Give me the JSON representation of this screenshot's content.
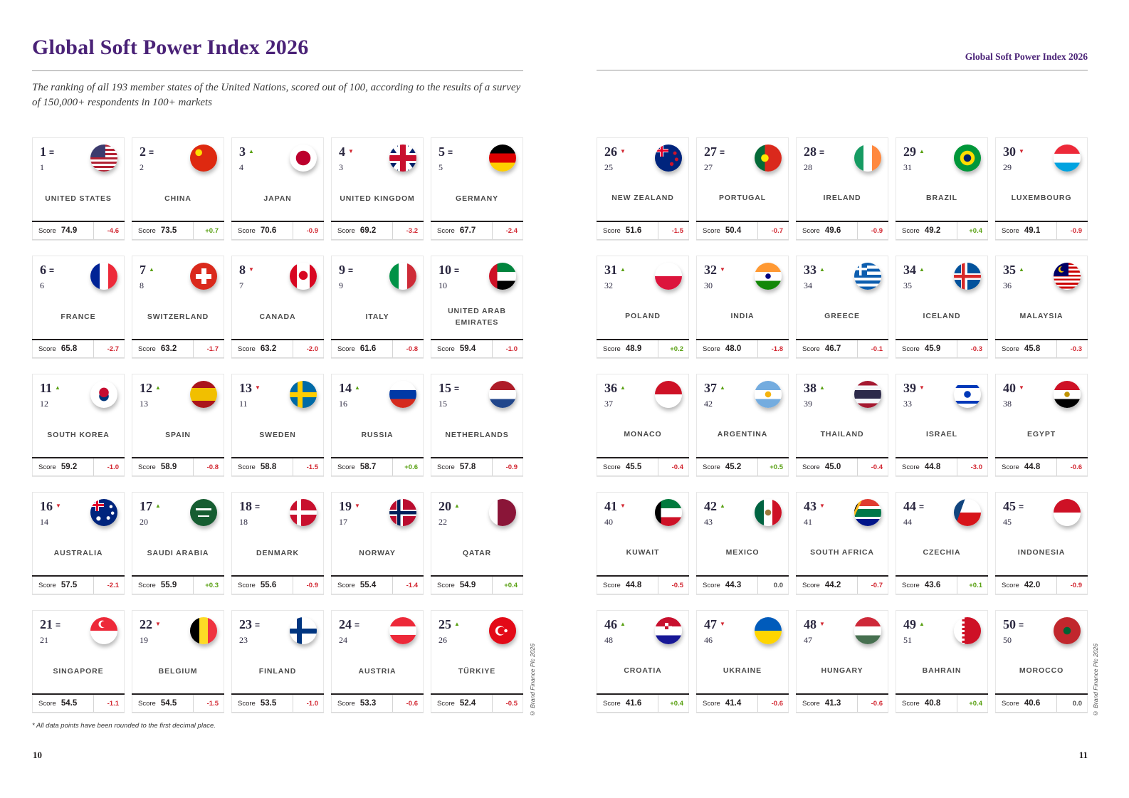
{
  "header": {
    "title": "Global Soft Power Index 2026",
    "running_header": "Global Soft Power Index 2026",
    "subtitle": "The ranking of all 193 member states of the United Nations, scored out of 100, according to the results of a survey of 150,000+ respondents in 100+ markets"
  },
  "score_label": "Score",
  "footnote": "* All data points have been rounded to the first decimal place.",
  "copyright": "© Brand Finance Plc 2026",
  "pages": {
    "left_number": "10",
    "right_number": "11"
  },
  "colors": {
    "accent_purple": "#4a2277",
    "positive_green": "#5aa114",
    "negative_red": "#d22630",
    "rank_ink": "#2b2840"
  },
  "movement_glyphs": {
    "same": "=",
    "up": "▲",
    "down": "▼"
  },
  "countries": [
    {
      "rank": "1",
      "movement": "same",
      "prev": "1",
      "name": "UNITED STATES",
      "flag": "us",
      "score": "74.9",
      "change": "-4.6"
    },
    {
      "rank": "2",
      "movement": "same",
      "prev": "2",
      "name": "CHINA",
      "flag": "cn",
      "score": "73.5",
      "change": "+0.7"
    },
    {
      "rank": "3",
      "movement": "up",
      "prev": "4",
      "name": "JAPAN",
      "flag": "jp",
      "score": "70.6",
      "change": "-0.9"
    },
    {
      "rank": "4",
      "movement": "down",
      "prev": "3",
      "name": "UNITED KINGDOM",
      "flag": "gb",
      "score": "69.2",
      "change": "-3.2"
    },
    {
      "rank": "5",
      "movement": "same",
      "prev": "5",
      "name": "GERMANY",
      "flag": "de",
      "score": "67.7",
      "change": "-2.4"
    },
    {
      "rank": "6",
      "movement": "same",
      "prev": "6",
      "name": "FRANCE",
      "flag": "fr",
      "score": "65.8",
      "change": "-2.7"
    },
    {
      "rank": "7",
      "movement": "up",
      "prev": "8",
      "name": "SWITZERLAND",
      "flag": "ch",
      "score": "63.2",
      "change": "-1.7"
    },
    {
      "rank": "8",
      "movement": "down",
      "prev": "7",
      "name": "CANADA",
      "flag": "ca",
      "score": "63.2",
      "change": "-2.0"
    },
    {
      "rank": "9",
      "movement": "same",
      "prev": "9",
      "name": "ITALY",
      "flag": "it",
      "score": "61.6",
      "change": "-0.8"
    },
    {
      "rank": "10",
      "movement": "same",
      "prev": "10",
      "name": "UNITED ARAB EMIRATES",
      "flag": "ae",
      "score": "59.4",
      "change": "-1.0"
    },
    {
      "rank": "11",
      "movement": "up",
      "prev": "12",
      "name": "SOUTH KOREA",
      "flag": "kr",
      "score": "59.2",
      "change": "-1.0"
    },
    {
      "rank": "12",
      "movement": "up",
      "prev": "13",
      "name": "SPAIN",
      "flag": "es",
      "score": "58.9",
      "change": "-0.8"
    },
    {
      "rank": "13",
      "movement": "down",
      "prev": "11",
      "name": "SWEDEN",
      "flag": "se",
      "score": "58.8",
      "change": "-1.5"
    },
    {
      "rank": "14",
      "movement": "up",
      "prev": "16",
      "name": "RUSSIA",
      "flag": "ru",
      "score": "58.7",
      "change": "+0.6"
    },
    {
      "rank": "15",
      "movement": "same",
      "prev": "15",
      "name": "NETHERLANDS",
      "flag": "nl",
      "score": "57.8",
      "change": "-0.9"
    },
    {
      "rank": "16",
      "movement": "down",
      "prev": "14",
      "name": "AUSTRALIA",
      "flag": "au",
      "score": "57.5",
      "change": "-2.1"
    },
    {
      "rank": "17",
      "movement": "up",
      "prev": "20",
      "name": "SAUDI ARABIA",
      "flag": "sa",
      "score": "55.9",
      "change": "+0.3"
    },
    {
      "rank": "18",
      "movement": "same",
      "prev": "18",
      "name": "DENMARK",
      "flag": "dk",
      "score": "55.6",
      "change": "-0.9"
    },
    {
      "rank": "19",
      "movement": "down",
      "prev": "17",
      "name": "NORWAY",
      "flag": "no",
      "score": "55.4",
      "change": "-1.4"
    },
    {
      "rank": "20",
      "movement": "up",
      "prev": "22",
      "name": "QATAR",
      "flag": "qa",
      "score": "54.9",
      "change": "+0.4"
    },
    {
      "rank": "21",
      "movement": "same",
      "prev": "21",
      "name": "SINGAPORE",
      "flag": "sg",
      "score": "54.5",
      "change": "-1.1"
    },
    {
      "rank": "22",
      "movement": "down",
      "prev": "19",
      "name": "BELGIUM",
      "flag": "be",
      "score": "54.5",
      "change": "-1.5"
    },
    {
      "rank": "23",
      "movement": "same",
      "prev": "23",
      "name": "FINLAND",
      "flag": "fi",
      "score": "53.5",
      "change": "-1.0"
    },
    {
      "rank": "24",
      "movement": "same",
      "prev": "24",
      "name": "AUSTRIA",
      "flag": "at",
      "score": "53.3",
      "change": "-0.6"
    },
    {
      "rank": "25",
      "movement": "up",
      "prev": "26",
      "name": "TÜRKIYE",
      "flag": "tr",
      "score": "52.4",
      "change": "-0.5"
    },
    {
      "rank": "26",
      "movement": "down",
      "prev": "25",
      "name": "NEW ZEALAND",
      "flag": "nz",
      "score": "51.6",
      "change": "-1.5"
    },
    {
      "rank": "27",
      "movement": "same",
      "prev": "27",
      "name": "PORTUGAL",
      "flag": "pt",
      "score": "50.4",
      "change": "-0.7"
    },
    {
      "rank": "28",
      "movement": "same",
      "prev": "28",
      "name": "IRELAND",
      "flag": "ie",
      "score": "49.6",
      "change": "-0.9"
    },
    {
      "rank": "29",
      "movement": "up",
      "prev": "31",
      "name": "BRAZIL",
      "flag": "br",
      "score": "49.2",
      "change": "+0.4"
    },
    {
      "rank": "30",
      "movement": "down",
      "prev": "29",
      "name": "LUXEMBOURG",
      "flag": "lu",
      "score": "49.1",
      "change": "-0.9"
    },
    {
      "rank": "31",
      "movement": "up",
      "prev": "32",
      "name": "POLAND",
      "flag": "pl",
      "score": "48.9",
      "change": "+0.2"
    },
    {
      "rank": "32",
      "movement": "down",
      "prev": "30",
      "name": "INDIA",
      "flag": "in",
      "score": "48.0",
      "change": "-1.8"
    },
    {
      "rank": "33",
      "movement": "up",
      "prev": "34",
      "name": "GREECE",
      "flag": "gr",
      "score": "46.7",
      "change": "-0.1"
    },
    {
      "rank": "34",
      "movement": "up",
      "prev": "35",
      "name": "ICELAND",
      "flag": "is",
      "score": "45.9",
      "change": "-0.3"
    },
    {
      "rank": "35",
      "movement": "up",
      "prev": "36",
      "name": "MALAYSIA",
      "flag": "my",
      "score": "45.8",
      "change": "-0.3"
    },
    {
      "rank": "36",
      "movement": "up",
      "prev": "37",
      "name": "MONACO",
      "flag": "mc",
      "score": "45.5",
      "change": "-0.4"
    },
    {
      "rank": "37",
      "movement": "up",
      "prev": "42",
      "name": "ARGENTINA",
      "flag": "ar",
      "score": "45.2",
      "change": "+0.5"
    },
    {
      "rank": "38",
      "movement": "up",
      "prev": "39",
      "name": "THAILAND",
      "flag": "th",
      "score": "45.0",
      "change": "-0.4"
    },
    {
      "rank": "39",
      "movement": "down",
      "prev": "33",
      "name": "ISRAEL",
      "flag": "il",
      "score": "44.8",
      "change": "-3.0"
    },
    {
      "rank": "40",
      "movement": "down",
      "prev": "38",
      "name": "EGYPT",
      "flag": "eg",
      "score": "44.8",
      "change": "-0.6"
    },
    {
      "rank": "41",
      "movement": "down",
      "prev": "40",
      "name": "KUWAIT",
      "flag": "kw",
      "score": "44.8",
      "change": "-0.5"
    },
    {
      "rank": "42",
      "movement": "up",
      "prev": "43",
      "name": "MEXICO",
      "flag": "mx",
      "score": "44.3",
      "change": "0.0"
    },
    {
      "rank": "43",
      "movement": "down",
      "prev": "41",
      "name": "SOUTH AFRICA",
      "flag": "za",
      "score": "44.2",
      "change": "-0.7"
    },
    {
      "rank": "44",
      "movement": "same",
      "prev": "44",
      "name": "CZECHIA",
      "flag": "cz",
      "score": "43.6",
      "change": "+0.1"
    },
    {
      "rank": "45",
      "movement": "same",
      "prev": "45",
      "name": "INDONESIA",
      "flag": "id",
      "score": "42.0",
      "change": "-0.9"
    },
    {
      "rank": "46",
      "movement": "up",
      "prev": "48",
      "name": "CROATIA",
      "flag": "hr",
      "score": "41.6",
      "change": "+0.4"
    },
    {
      "rank": "47",
      "movement": "down",
      "prev": "46",
      "name": "UKRAINE",
      "flag": "ua",
      "score": "41.4",
      "change": "-0.6"
    },
    {
      "rank": "48",
      "movement": "down",
      "prev": "47",
      "name": "HUNGARY",
      "flag": "hu",
      "score": "41.3",
      "change": "-0.6"
    },
    {
      "rank": "49",
      "movement": "up",
      "prev": "51",
      "name": "BAHRAIN",
      "flag": "bh",
      "score": "40.8",
      "change": "+0.4"
    },
    {
      "rank": "50",
      "movement": "same",
      "prev": "50",
      "name": "MOROCCO",
      "flag": "ma",
      "score": "40.6",
      "change": "0.0"
    }
  ]
}
